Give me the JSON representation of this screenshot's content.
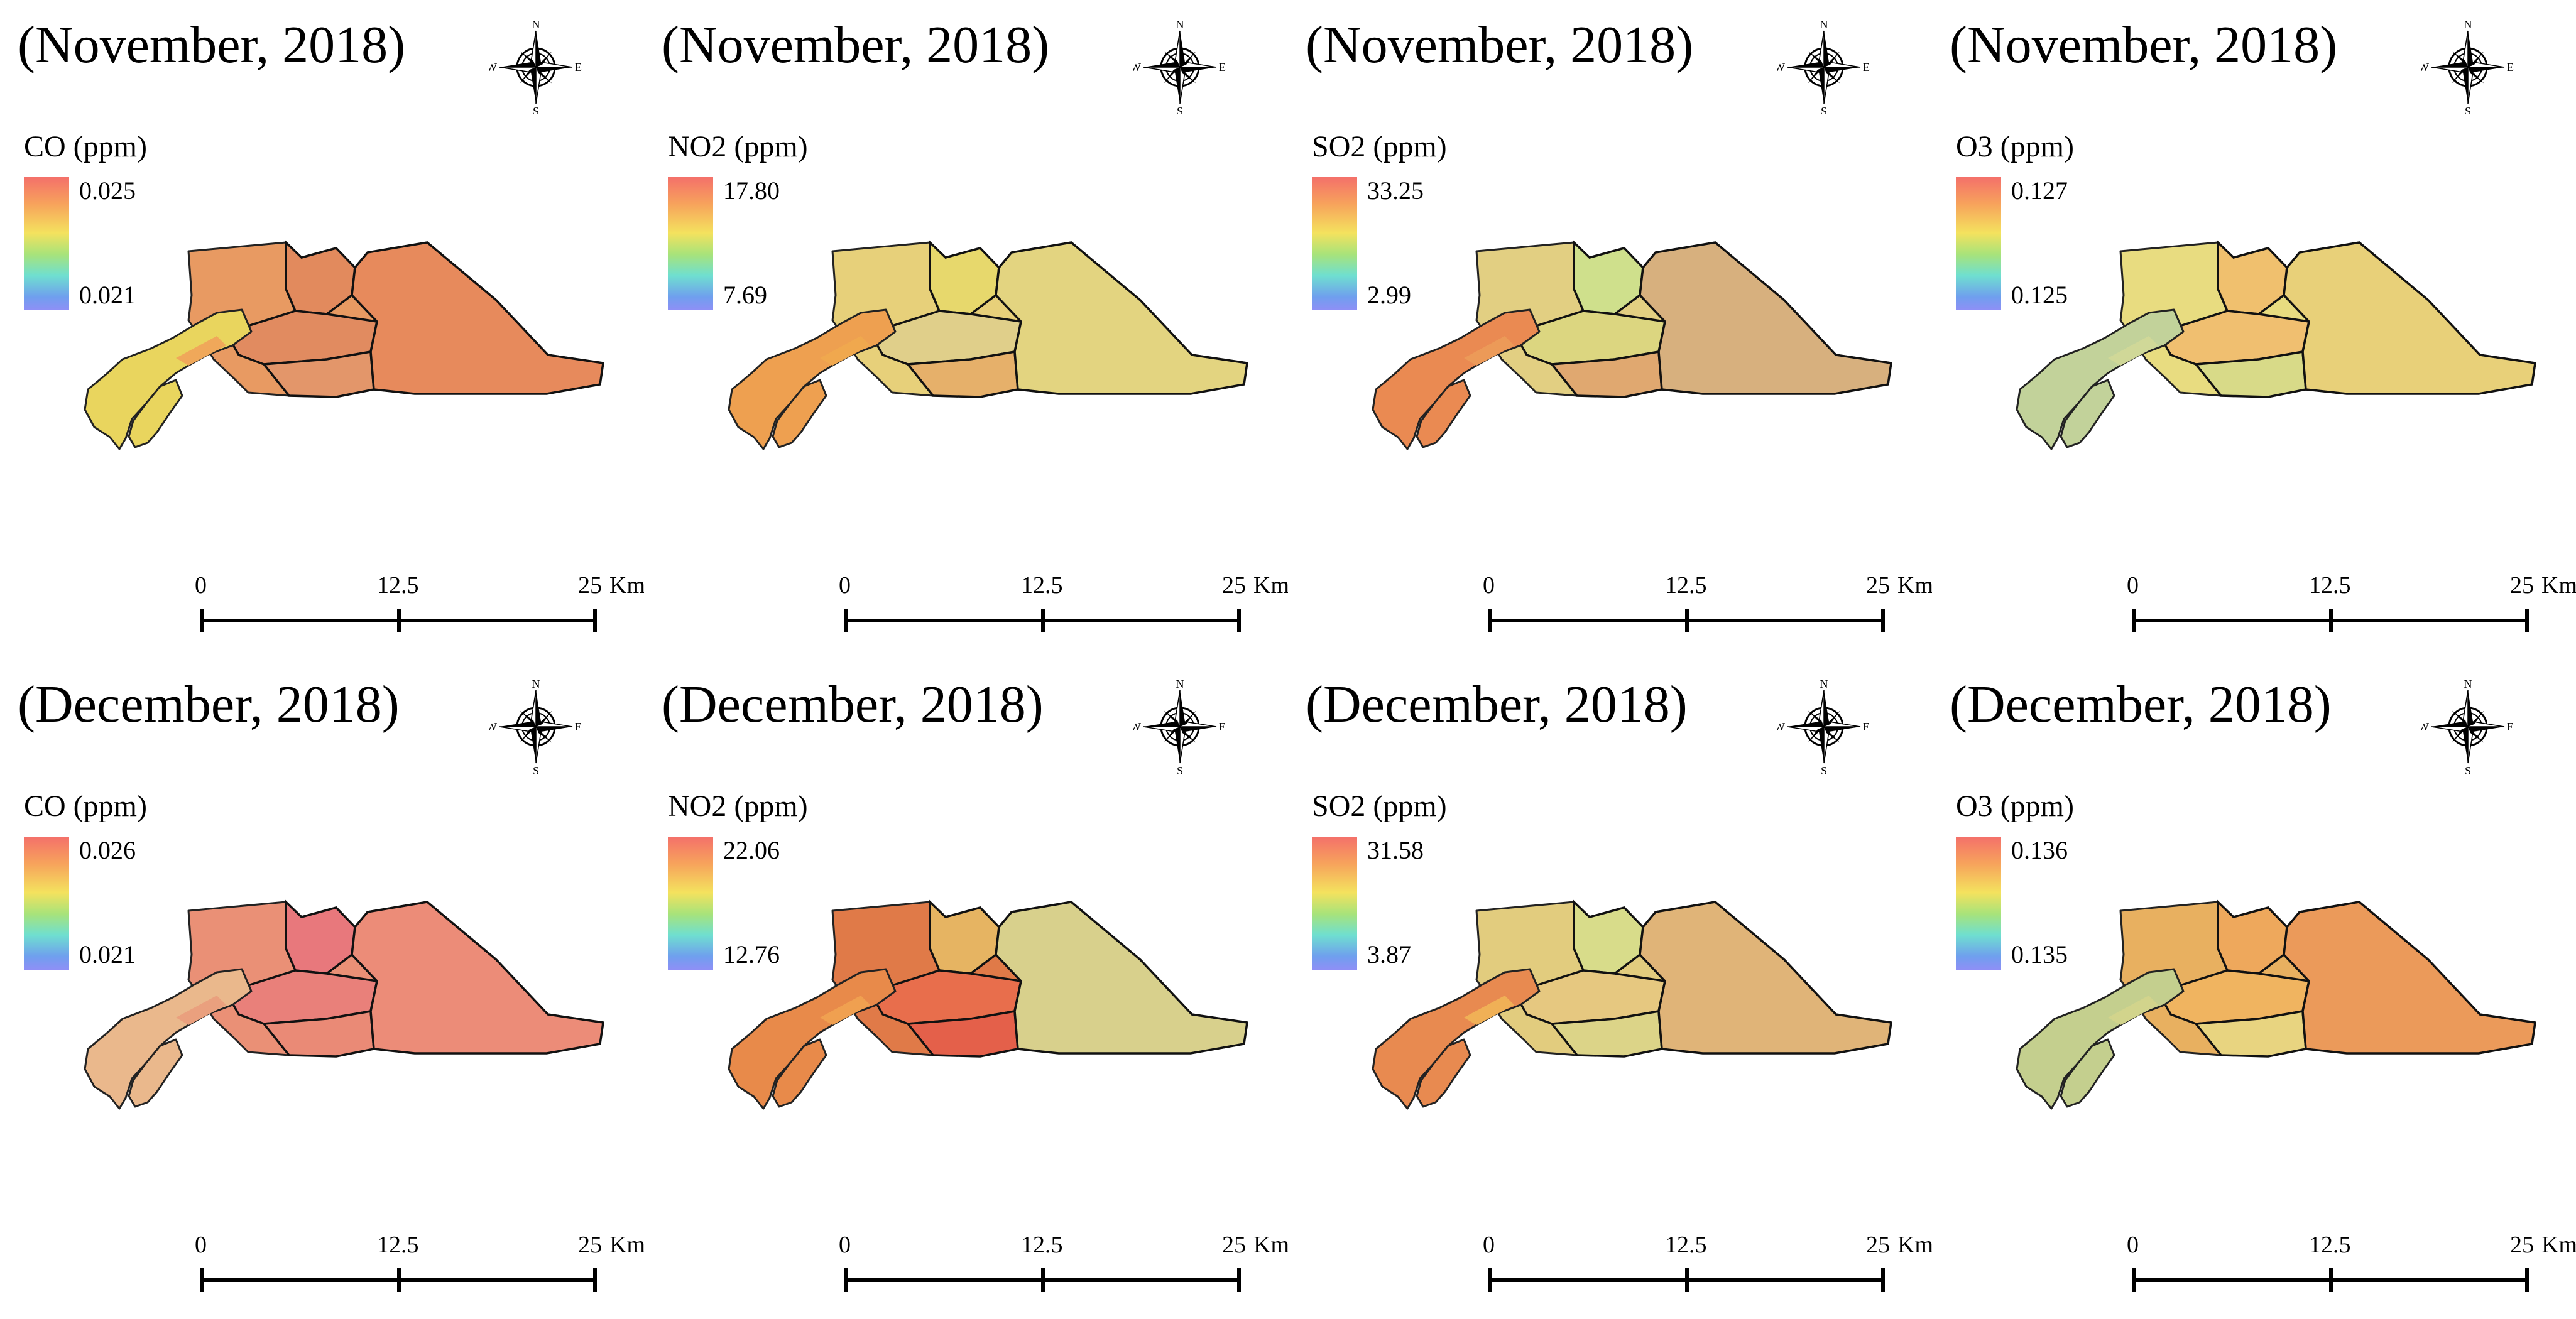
{
  "months": [
    {
      "period": "(November, 2018)",
      "panels": [
        {
          "pollutant": "CO (ppm)",
          "max": "0.025",
          "min": "0.021",
          "palette": "co_nov"
        },
        {
          "pollutant": "NO2 (ppm)",
          "max": "17.80",
          "min": "7.69",
          "palette": "no2_nov"
        },
        {
          "pollutant": "SO2 (ppm)",
          "max": "33.25",
          "min": "2.99",
          "palette": "so2_nov"
        },
        {
          "pollutant": "O3 (ppm)",
          "max": "0.127",
          "min": "0.125",
          "palette": "o3_nov"
        }
      ]
    },
    {
      "period": "(December, 2018)",
      "panels": [
        {
          "pollutant": "CO (ppm)",
          "max": "0.026",
          "min": "0.021",
          "palette": "co_dec"
        },
        {
          "pollutant": "NO2 (ppm)",
          "max": "22.06",
          "min": "12.76",
          "palette": "no2_dec"
        },
        {
          "pollutant": "SO2 (ppm)",
          "max": "31.58",
          "min": "3.87",
          "palette": "so2_dec"
        },
        {
          "pollutant": "O3 (ppm)",
          "max": "0.136",
          "min": "0.135",
          "palette": "o3_dec"
        }
      ]
    }
  ],
  "scale_bar": {
    "labels": [
      "0",
      "12.5",
      "25"
    ],
    "unit": "Km"
  },
  "compass": {
    "north": "N",
    "south": "S",
    "east": "E",
    "west": "W"
  },
  "palettes": {
    "co_nov": {
      "base": "#e89a62",
      "west": "#e9d55e",
      "strip": "#f0a85a",
      "d1": "#e28a5d",
      "d2": "#e18b60",
      "d3": "#e3966a",
      "d4": "#e78a5c"
    },
    "no2_nov": {
      "base": "#e7d07a",
      "west": "#eea050",
      "strip": "#f0a84e",
      "d1": "#e7d86c",
      "d2": "#e0cf8a",
      "d3": "#e6b06a",
      "d4": "#e3d480"
    },
    "so2_nov": {
      "base": "#e2cf82",
      "west": "#ea8a52",
      "strip": "#ec9a58",
      "d1": "#cfe08c",
      "d2": "#dcd680",
      "d3": "#e0a870",
      "d4": "#d7b07e"
    },
    "o3_nov": {
      "base": "#e8dc80",
      "west": "#c2d29a",
      "strip": "#d0d898",
      "d1": "#f0c06e",
      "d2": "#f0bf70",
      "d3": "#d8da88",
      "d4": "#e8d079"
    },
    "co_dec": {
      "base": "#ea9076",
      "west": "#eab88c",
      "strip": "#eaa07e",
      "d1": "#e8787c",
      "d2": "#e9807a",
      "d3": "#ea8a76",
      "d4": "#ec8c78"
    },
    "no2_dec": {
      "base": "#e07a48",
      "west": "#e88a4a",
      "strip": "#f0a050",
      "d1": "#e6b462",
      "d2": "#e86e4c",
      "d3": "#e4604a",
      "d4": "#d8d08c"
    },
    "so2_dec": {
      "base": "#e2cc7e",
      "west": "#e88a50",
      "strip": "#f0b056",
      "d1": "#d8dc8a",
      "d2": "#e6c880",
      "d3": "#dcd488",
      "d4": "#e0b478"
    },
    "o3_dec": {
      "base": "#e8b060",
      "west": "#c4cf8e",
      "strip": "#d2d48c",
      "d1": "#eea85c",
      "d2": "#f0b460",
      "d3": "#e8d480",
      "d4": "#eb9a5a"
    }
  }
}
